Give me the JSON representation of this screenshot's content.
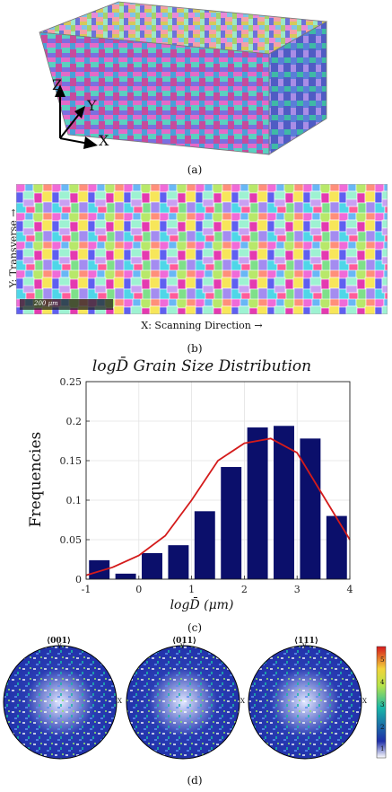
{
  "panel_a": {
    "axes": {
      "z": "Z",
      "y": "Y",
      "x": "X"
    },
    "caption": "(a)"
  },
  "panel_b": {
    "ylabel": "Y: Transverse →",
    "xlabel": "X: Scanning Direction →",
    "scalebar": "200 μm",
    "caption": "(b)"
  },
  "panel_c": {
    "caption": "(c)"
  },
  "panel_d": {
    "poles": [
      {
        "label": "⟨001⟩",
        "y": "Y",
        "x": "X"
      },
      {
        "label": "⟨011⟩",
        "y": "Y",
        "x": "X"
      },
      {
        "label": "⟨111⟩",
        "y": "Y",
        "x": "X"
      }
    ],
    "colorbar_ticks": [
      "5",
      "4",
      "3",
      "2",
      "1"
    ],
    "colors": {
      "low": "#ffffff",
      "mid": "#19b7a8",
      "high": "#d7191c",
      "base": "#1f2fa8"
    },
    "caption": "(d)"
  },
  "chart_data": {
    "type": "bar",
    "title": "logD̄ Grain Size Distribution",
    "xlabel": "logD̄ (μm)",
    "ylabel": "Frequencies",
    "x_centers": [
      -0.75,
      -0.25,
      0.25,
      0.75,
      1.25,
      1.75,
      2.25,
      2.75,
      3.25,
      3.75
    ],
    "values": [
      0.024,
      0.007,
      0.033,
      0.043,
      0.086,
      0.142,
      0.192,
      0.194,
      0.178,
      0.08
    ],
    "fit_curve": {
      "x": [
        -1,
        -0.5,
        0,
        0.5,
        1,
        1.5,
        2,
        2.5,
        3,
        3.5,
        4
      ],
      "y": [
        0.005,
        0.015,
        0.03,
        0.055,
        0.1,
        0.15,
        0.172,
        0.178,
        0.16,
        0.105,
        0.05
      ]
    },
    "xlim": [
      -1,
      4
    ],
    "ylim": [
      0,
      0.25
    ],
    "xticks": [
      "-1",
      "0",
      "1",
      "2",
      "3",
      "4"
    ],
    "yticks": [
      "0",
      "0.05",
      "0.1",
      "0.15",
      "0.2",
      "0.25"
    ],
    "bar_color": "#0b0f6b",
    "curve_color": "#d41b1b",
    "grid": true
  }
}
